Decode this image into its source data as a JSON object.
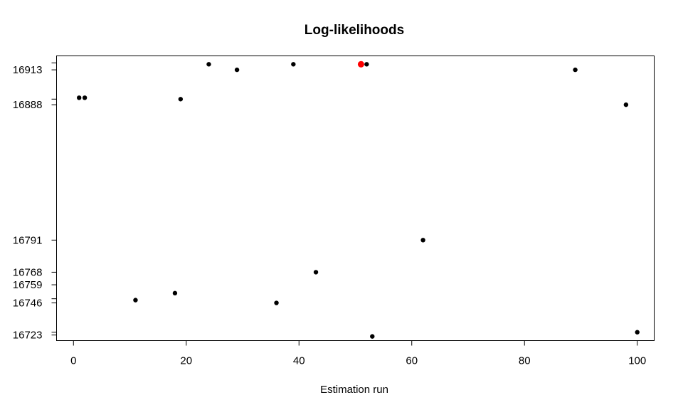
{
  "chart_data": {
    "type": "scatter",
    "title": "Log-likelihoods",
    "xlabel": "Estimation run",
    "ylabel": "",
    "xlim": [
      -3,
      103
    ],
    "ylim": [
      16719,
      16923
    ],
    "x_ticks": [
      0,
      20,
      40,
      60,
      80,
      100
    ],
    "x_tick_labels": [
      "0",
      "20",
      "40",
      "60",
      "80",
      "100"
    ],
    "y_ticks": [
      16723,
      16725,
      16746,
      16749,
      16759,
      16768,
      16791,
      16888,
      16892,
      16913,
      16918
    ],
    "y_tick_labels": [
      "16723",
      "",
      "16746",
      "",
      "16759",
      "16768",
      "16791",
      "16888",
      "",
      "16913",
      ""
    ],
    "grid": false,
    "point_color": "#000000",
    "highlight_color": "#FF0000",
    "points": [
      {
        "x": 1,
        "y": 16893
      },
      {
        "x": 2,
        "y": 16893
      },
      {
        "x": 11,
        "y": 16748
      },
      {
        "x": 18,
        "y": 16753
      },
      {
        "x": 19,
        "y": 16892
      },
      {
        "x": 24,
        "y": 16917
      },
      {
        "x": 29,
        "y": 16913
      },
      {
        "x": 36,
        "y": 16746
      },
      {
        "x": 39,
        "y": 16917
      },
      {
        "x": 43,
        "y": 16768
      },
      {
        "x": 52,
        "y": 16917
      },
      {
        "x": 53,
        "y": 16722
      },
      {
        "x": 62,
        "y": 16791
      },
      {
        "x": 89,
        "y": 16913
      },
      {
        "x": 98,
        "y": 16888
      },
      {
        "x": 100,
        "y": 16725
      }
    ],
    "highlight_point": {
      "x": 51,
      "y": 16917
    }
  }
}
